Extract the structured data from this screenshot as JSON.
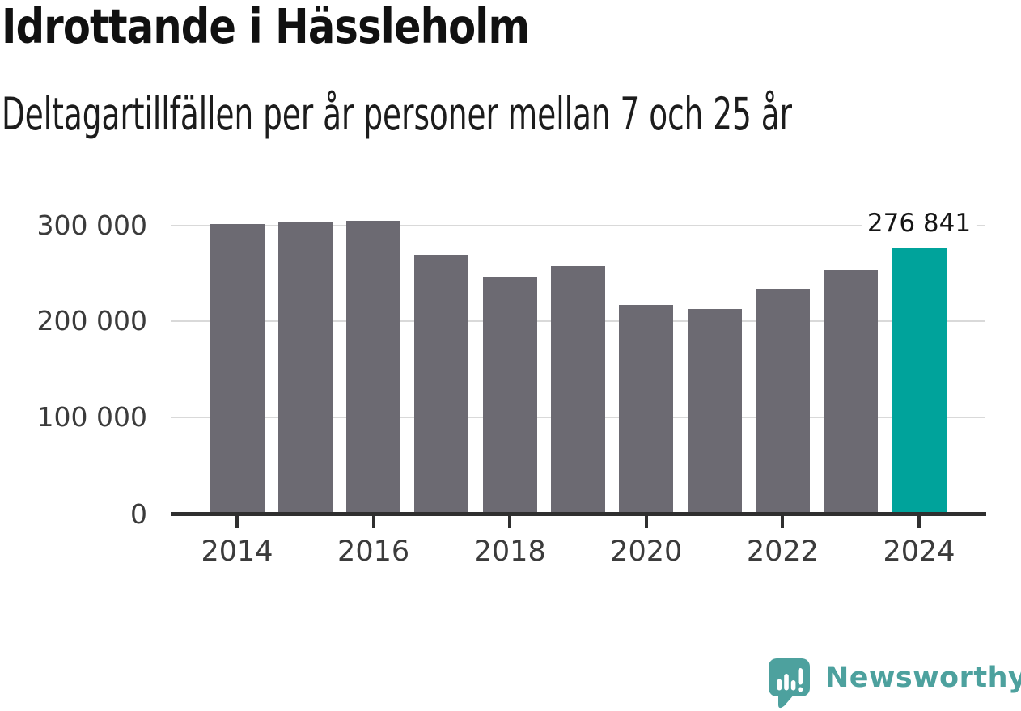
{
  "header": {
    "title": "Idrottande i Hässleholm",
    "subtitle": "Deltagartillfällen per år personer mellan 7 och 25 år"
  },
  "chart_data": {
    "type": "bar",
    "title": "Idrottande i Hässleholm",
    "subtitle": "Deltagartillfällen per år personer mellan 7 och 25 år",
    "categories": [
      "2014",
      "2015",
      "2016",
      "2017",
      "2018",
      "2019",
      "2020",
      "2021",
      "2022",
      "2023",
      "2024"
    ],
    "values": [
      301000,
      303500,
      304500,
      269500,
      246000,
      257500,
      217000,
      213000,
      234000,
      253500,
      276841
    ],
    "highlight": {
      "index": 10,
      "label": "276 841",
      "value": 276841,
      "color": "#00a39b"
    },
    "bar_color": "#6c6a72",
    "yticks": [
      {
        "value": 0,
        "label": "0"
      },
      {
        "value": 100000,
        "label": "100 000"
      },
      {
        "value": 200000,
        "label": "200 000"
      },
      {
        "value": 300000,
        "label": "300 000"
      }
    ],
    "xtick_labels": [
      "2014",
      "2016",
      "2018",
      "2020",
      "2022",
      "2024"
    ],
    "ylim": [
      0,
      310000
    ],
    "xlabel": "",
    "ylabel": "",
    "grid": "horizontal",
    "legend": "none",
    "gridline_color": "#d9d9d9",
    "axis_color": "#2f2f2f"
  },
  "branding": {
    "text": "Newsworthy",
    "color": "#4da19e",
    "icon": "newsworthy-speech-bubble-chart-icon"
  }
}
